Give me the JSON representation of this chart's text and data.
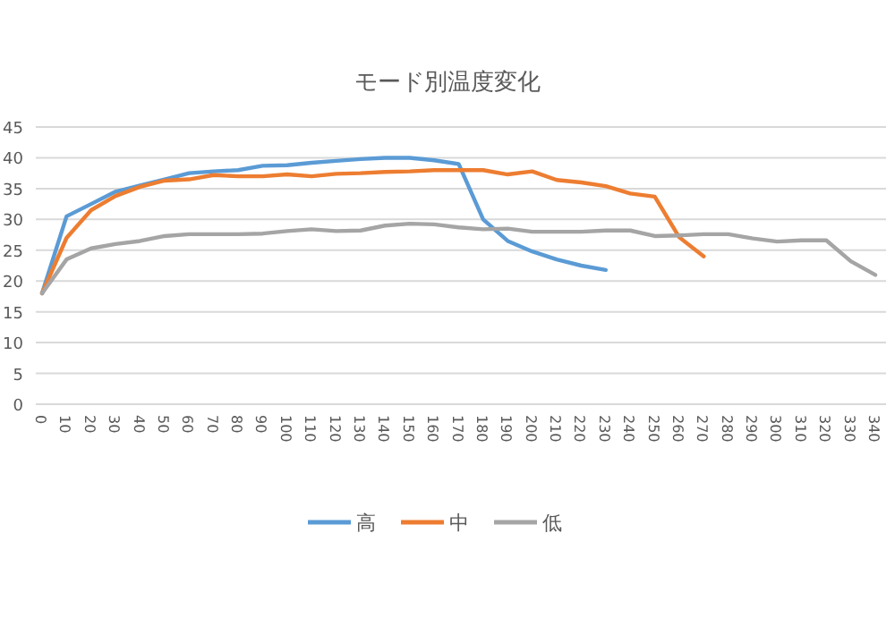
{
  "chart_data": {
    "type": "line",
    "title": "モード別温度変化",
    "categories": [
      "0",
      "10",
      "20",
      "30",
      "40",
      "50",
      "60",
      "70",
      "80",
      "90",
      "100",
      "110",
      "120",
      "130",
      "140",
      "150",
      "160",
      "170",
      "180",
      "190",
      "200",
      "210",
      "220",
      "230",
      "240",
      "250",
      "260",
      "270",
      "280",
      "290",
      "300",
      "310",
      "320",
      "330",
      "340"
    ],
    "series": [
      {
        "name": "高",
        "color": "#5b9bd5",
        "values": [
          18,
          30.5,
          32.5,
          34.5,
          35.5,
          36.5,
          37.5,
          37.8,
          38,
          38.7,
          38.8,
          39.2,
          39.5,
          39.8,
          40,
          40,
          39.6,
          39,
          30,
          26.5,
          24.8,
          23.5,
          22.5,
          21.8,
          null,
          null,
          null,
          null,
          null,
          null,
          null,
          null,
          null,
          null,
          null
        ]
      },
      {
        "name": "中",
        "color": "#ed7d31",
        "values": [
          18,
          27,
          31.5,
          33.8,
          35.3,
          36.3,
          36.5,
          37.2,
          37,
          37,
          37.3,
          37,
          37.4,
          37.5,
          37.7,
          37.8,
          38,
          38,
          38,
          37.3,
          37.8,
          36.4,
          36,
          35.4,
          34.2,
          33.7,
          27.1,
          24,
          null,
          null,
          null,
          null,
          null,
          null,
          null
        ]
      },
      {
        "name": "低",
        "color": "#a5a5a5",
        "values": [
          18,
          23.5,
          25.3,
          26,
          26.5,
          27.3,
          27.6,
          27.6,
          27.6,
          27.7,
          28.1,
          28.4,
          28.1,
          28.2,
          29,
          29.3,
          29.2,
          28.7,
          28.4,
          28.5,
          28,
          28,
          28,
          28.2,
          28.2,
          27.3,
          27.4,
          27.6,
          27.6,
          26.9,
          26.4,
          26.6,
          26.6,
          23.2,
          21
        ]
      }
    ],
    "ylim": [
      0,
      45
    ],
    "yticks": [
      0,
      5,
      10,
      15,
      20,
      25,
      30,
      35,
      40,
      45
    ],
    "grid": "y",
    "legend": "bottom"
  }
}
